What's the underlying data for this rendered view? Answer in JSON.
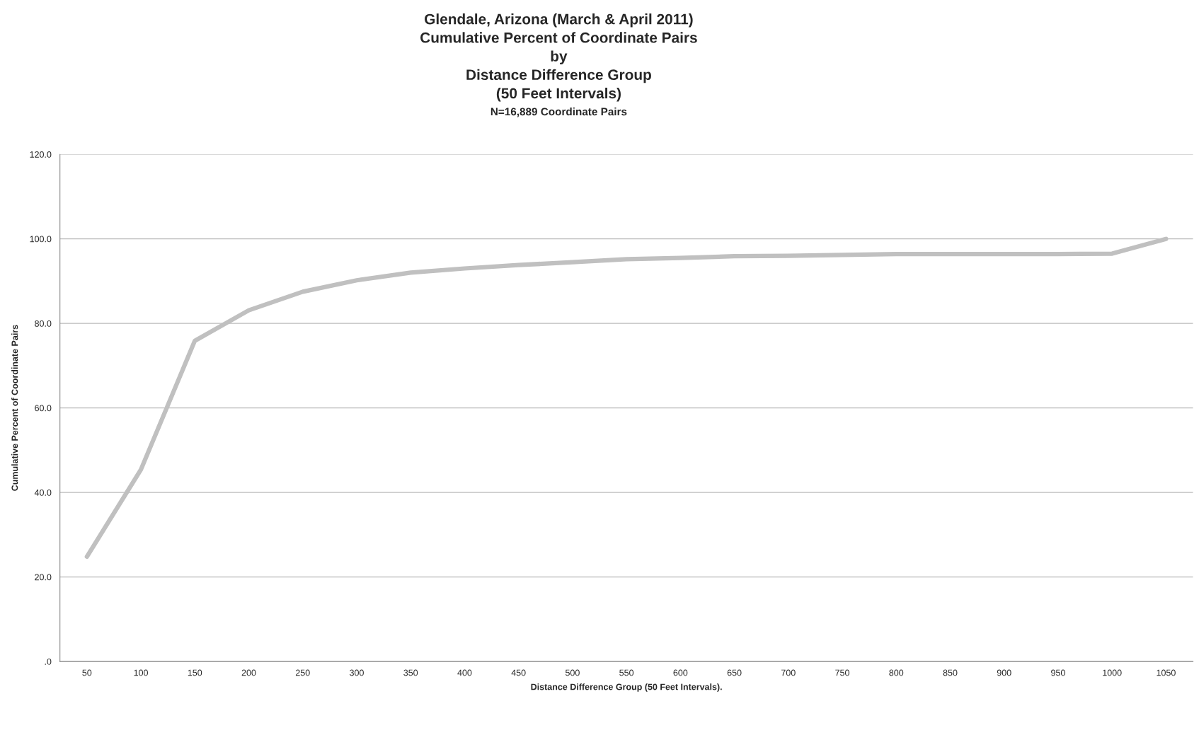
{
  "chart_data": {
    "type": "line",
    "title": "Glendale, Arizona (March & April 2011)\nCumulative Percent of Coordinate Pairs\nby\nDistance Difference Group\n(50 Feet Intervals)",
    "subtitle": "N=16,889 Coordinate Pairs",
    "xlabel": "Distance Difference Group (50 Feet Intervals).",
    "ylabel": "Cumulative Percent of Coordinate Pairs",
    "categories": [
      "50",
      "100",
      "150",
      "200",
      "250",
      "300",
      "350",
      "400",
      "450",
      "500",
      "550",
      "600",
      "650",
      "700",
      "750",
      "800",
      "850",
      "900",
      "950",
      "1000",
      "1050"
    ],
    "series": [
      {
        "color": "#c0c0c0",
        "values": [
          24.8,
          45.4,
          75.9,
          83.1,
          87.5,
          90.2,
          92.0,
          93.0,
          93.8,
          94.5,
          95.2,
          95.5,
          95.9,
          96.0,
          96.2,
          96.4,
          96.4,
          96.4,
          96.4,
          96.5,
          100.0
        ]
      }
    ],
    "ylim": [
      0,
      120
    ],
    "yticks": [
      {
        "value": 0,
        "label": ".0"
      },
      {
        "value": 20,
        "label": "20.0"
      },
      {
        "value": 40,
        "label": "40.0"
      },
      {
        "value": 60,
        "label": "60.0"
      },
      {
        "value": 80,
        "label": "80.0"
      },
      {
        "value": 100,
        "label": "100.0"
      },
      {
        "value": 120,
        "label": "120.0"
      }
    ],
    "grid": "y",
    "marker": "none",
    "line_style": "solid",
    "legend": false
  }
}
